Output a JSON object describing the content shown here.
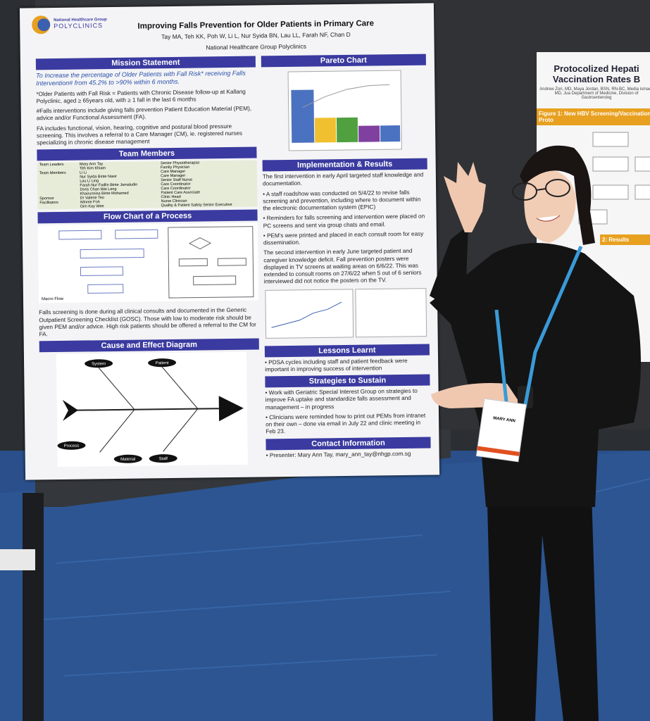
{
  "poster": {
    "org_name": "National Healthcare Group",
    "org_sub": "POLYCLINICS",
    "title": "Improving Falls Prevention for Older Patients in Primary Care",
    "authors": "Tay MA, Teh KK, Poh W, Li L, Nur Syida BN, Lau LL, Farah NF, Chan D",
    "affiliation": "National Healthcare Group Polyclinics",
    "mission": {
      "heading": "Mission Statement",
      "lines": [
        "To Increase the percentage of Older Patients with Fall Risk* receiving Falls Intervention# from 45.2% to >90% within 6 months.",
        "*Older Patients with Fall Risk = Patients with Chronic Disease follow-up at Kallang Polyclinic, aged ≥ 65years old, with ≥ 1 fall in the last 6 months",
        "#Falls interventions include giving falls prevention Patient Education Material (PEM), advice and/or Functional Assessment (FA).",
        "FA includes functional, vision, hearing, cognitive and postural blood pressure screening. This involves a referral to a Care Manager (CM), ie. registered nurses specializing in chronic disease management"
      ]
    },
    "team": {
      "heading": "Team Members",
      "groups": [
        {
          "role": "Team Leaders",
          "members": [
            {
              "name": "Mary Ann Tay",
              "title": "Senior Physiotherapist"
            },
            {
              "name": "Teh Kim Khiam",
              "title": "Family Physician"
            }
          ]
        },
        {
          "role": "Team Members",
          "members": [
            {
              "name": "Li Li",
              "title": "Care Manager"
            },
            {
              "name": "Nur Syida Binte Nasir",
              "title": "Care Manager"
            },
            {
              "name": "Lau Li Ling",
              "title": "Senior Staff Nurse"
            },
            {
              "name": "Farah Nur Fadlin Binte Jamaludin",
              "title": "Care Coordinator"
            },
            {
              "name": "Doris Chan Wai Leng",
              "title": "Care Coordinator"
            },
            {
              "name": "Khairunnisa Binte Mohamed",
              "title": "Patient Care Associate"
            }
          ]
        },
        {
          "role": "Sponsor",
          "members": [
            {
              "name": "Dr Valerie Teo",
              "title": "Clinic Head"
            }
          ]
        },
        {
          "role": "Facilitators",
          "members": [
            {
              "name": "Winnie Poh",
              "title": "Nurse Clinician"
            },
            {
              "name": "Gim Kay Wee",
              "title": "Quality & Patient Safety Senior Executive"
            }
          ]
        }
      ]
    },
    "flow": {
      "heading": "Flow Chart of a Process",
      "caption": "Macro Flow",
      "lines": [
        "Falls screening is done during all clinical consults and documented in the Generic Outpatient Screening Checklist (GOSC). Those with low to moderate risk should be given PEM and/or advice. High risk patients should be offered a referral to the CM for FA."
      ]
    },
    "cause": {
      "heading": "Cause and Effect Diagram",
      "labels": [
        "System",
        "Patient",
        "Process",
        "Staff",
        "Material"
      ]
    },
    "pareto": {
      "heading": "Pareto Chart"
    },
    "implementation": {
      "heading": "Implementation & Results",
      "lines": [
        "The first intervention in early April targeted staff knowledge and documentation.",
        "• A staff roadshow was conducted on 5/4/22 to revise falls screening and prevention, including where to document within the electronic documentation system (EPIC)",
        "• Reminders for falls screening and intervention were placed on PC screens and sent via group chats and email.",
        "• PEM's were printed and placed in each consult room for easy dissemination.",
        "The second intervention in early June targeted patient and caregiver knowledge deficit. Fall prevention posters were displayed in TV screens at waiting areas on 6/6/22. This was extended to consult rooms on 27/6/22 when 5 out of 6 seniors interviewed did not notice the posters on the TV."
      ]
    },
    "lessons": {
      "heading": "Lessons Learnt",
      "lines": [
        "• PDSA cycles including staff and patient feedback were important in improving success of intervention"
      ]
    },
    "strategies": {
      "heading": "Strategies to Sustain",
      "lines": [
        "• Work with Geriatric Special Interest Group on strategies to improve FA uptake and standardize falls assessment and management – in progress",
        "• Clinicians were reminded how to print out PEMs from intranet on their own – done via email in July 22 and clinic meeting in Feb 23."
      ]
    },
    "contact": {
      "heading": "Contact Information",
      "lines": [
        "• Presenter: Mary Ann Tay, mary_ann_tay@nhgp.com.sg"
      ]
    }
  },
  "side_poster": {
    "title": "Protocolized Hepati Vaccination Rates B",
    "authors": "Andrew Zori, MD, Maya Jordan, BSN, RN-BC, Media ismael, MD, Jua Department of Medicine, Division of Gastroenterolog",
    "figure1": "Figure 1: New HBV Screening/Vaccination Proto",
    "figure2": "2: Results"
  },
  "badge": {
    "name": "MARY ANN"
  }
}
